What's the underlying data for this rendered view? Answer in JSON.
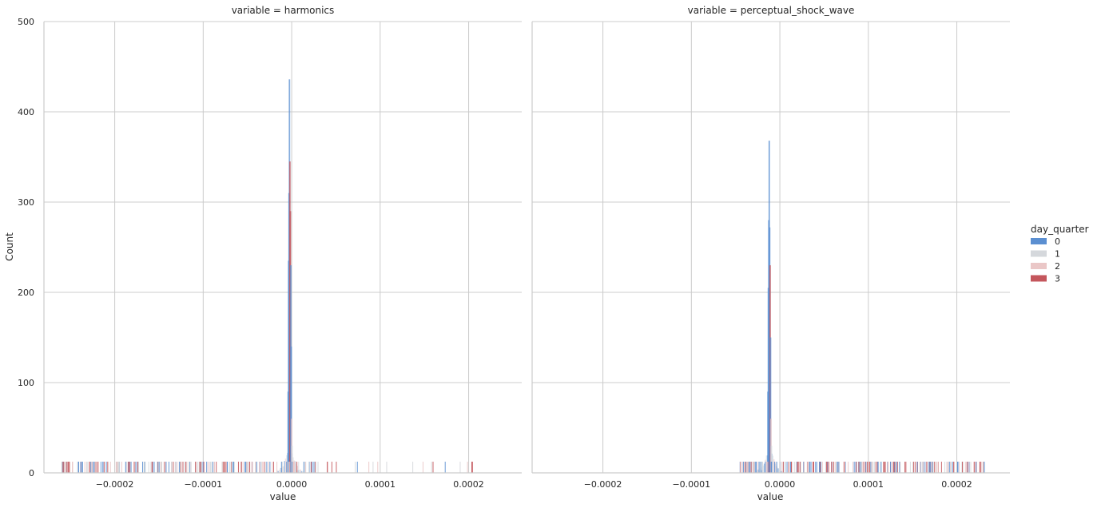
{
  "chart_data": {
    "type": "histogram",
    "x_label": "value",
    "y_label": "Count",
    "y_ticks": [
      0,
      100,
      200,
      300,
      400,
      500
    ],
    "ylim": [
      0,
      500
    ],
    "xlim": [
      -0.00028,
      0.00026
    ],
    "x_ticks": [
      {
        "value": -0.0002,
        "label": "−0.0002"
      },
      {
        "value": -0.0001,
        "label": "−0.0001"
      },
      {
        "value": 0.0,
        "label": "0.0000"
      },
      {
        "value": 0.0001,
        "label": "0.0001"
      },
      {
        "value": 0.0002,
        "label": "0.0002"
      }
    ],
    "grid": true,
    "legend": {
      "title": "day_quarter",
      "position": "right",
      "entries": [
        {
          "label": "0",
          "color": "#5b8fd1"
        },
        {
          "label": "1",
          "color": "#d5d8dc"
        },
        {
          "label": "2",
          "color": "#eac7c7"
        },
        {
          "label": "3",
          "color": "#c4565c"
        }
      ]
    },
    "facets": [
      {
        "title": "variable = harmonics",
        "peak_x": -2e-06,
        "spike_bins": [
          {
            "x": -4e-06,
            "series": 0,
            "count": 90
          },
          {
            "x": -3.5e-06,
            "series": 0,
            "count": 235
          },
          {
            "x": -3e-06,
            "series": 0,
            "count": 310
          },
          {
            "x": -2.5e-06,
            "series": 0,
            "count": 436
          },
          {
            "x": -2e-06,
            "series": 3,
            "count": 345
          },
          {
            "x": -1.5e-06,
            "series": 3,
            "count": 290
          },
          {
            "x": -1e-06,
            "series": 0,
            "count": 230
          },
          {
            "x": -5e-07,
            "series": 0,
            "count": 140
          },
          {
            "x": 0.0,
            "series": 2,
            "count": 60
          },
          {
            "x": 5e-07,
            "series": 1,
            "count": 30
          }
        ],
        "rug_range": [
          -0.00026,
          0.00021
        ]
      },
      {
        "title": "variable = perceptual_shock_wave",
        "peak_x": -1.15e-05,
        "spike_bins": [
          {
            "x": -1.35e-05,
            "series": 0,
            "count": 90
          },
          {
            "x": -1.3e-05,
            "series": 0,
            "count": 205
          },
          {
            "x": -1.25e-05,
            "series": 0,
            "count": 280
          },
          {
            "x": -1.2e-05,
            "series": 0,
            "count": 368
          },
          {
            "x": -1.15e-05,
            "series": 0,
            "count": 272
          },
          {
            "x": -1.1e-05,
            "series": 3,
            "count": 230
          },
          {
            "x": -1.05e-05,
            "series": 0,
            "count": 150
          },
          {
            "x": -1e-05,
            "series": 2,
            "count": 60
          },
          {
            "x": -9.5e-06,
            "series": 1,
            "count": 30
          }
        ],
        "rug_range": [
          -4.5e-05,
          0.00024
        ]
      }
    ]
  }
}
